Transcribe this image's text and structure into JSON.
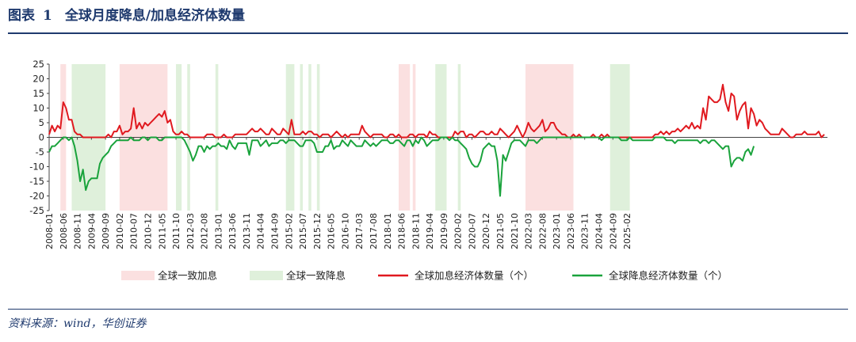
{
  "header": {
    "label": "图表",
    "number": "1",
    "title": "全球月度降息/加息经济体数量"
  },
  "source": "资料来源：wind，华创证券",
  "colors": {
    "hike_band": "#fbe0e0",
    "cut_band": "#dff0db",
    "hike_line": "#e0191f",
    "cut_line": "#1aa33c",
    "navy": "#1f3a6e"
  },
  "chart_data": {
    "type": "line",
    "ylim": [
      -25,
      25
    ],
    "yticks": [
      25,
      20,
      15,
      10,
      5,
      0,
      -5,
      -10,
      -15,
      -20,
      -25
    ],
    "start_month": "2008-01",
    "xtick_labels": [
      "2008-01",
      "2008-06",
      "2008-11",
      "2009-04",
      "2009-09",
      "2010-02",
      "2010-07",
      "2010-12",
      "2011-05",
      "2011-10",
      "2012-03",
      "2012-08",
      "2013-01",
      "2013-06",
      "2013-11",
      "2014-04",
      "2014-09",
      "2015-02",
      "2015-07",
      "2015-12",
      "2016-05",
      "2016-10",
      "2017-03",
      "2017-08",
      "2018-01",
      "2018-06",
      "2018-11",
      "2019-04",
      "2019-09",
      "2020-02",
      "2020-07",
      "2020-12",
      "2021-05",
      "2021-10",
      "2022-03",
      "2022-08",
      "2023-01",
      "2023-06",
      "2023-11",
      "2024-04",
      "2024-09",
      "2025-02"
    ],
    "legend": [
      {
        "label": "全球一致加息",
        "kind": "band",
        "color": "#fbe0e0"
      },
      {
        "label": "全球一致降息",
        "kind": "band",
        "color": "#dff0db"
      },
      {
        "label": "全球加息经济体数量（个）",
        "kind": "line",
        "color": "#e0191f"
      },
      {
        "label": "全球降息经济体数量（个）",
        "kind": "line",
        "color": "#1aa33c"
      }
    ],
    "hike_bands": [
      [
        "2008-05",
        "2008-07"
      ],
      [
        "2010-02",
        "2011-07"
      ],
      [
        "2018-05",
        "2018-09"
      ],
      [
        "2018-10",
        "2018-11"
      ],
      [
        "2022-02",
        "2023-07"
      ]
    ],
    "cut_bands": [
      [
        "2008-09",
        "2009-09"
      ],
      [
        "2011-10",
        "2011-12"
      ],
      [
        "2012-02",
        "2012-03"
      ],
      [
        "2012-12",
        "2013-01"
      ],
      [
        "2015-01",
        "2015-04"
      ],
      [
        "2015-06",
        "2015-07"
      ],
      [
        "2015-09",
        "2015-10"
      ],
      [
        "2015-12",
        "2016-01"
      ],
      [
        "2019-06",
        "2019-10"
      ],
      [
        "2020-02",
        "2020-03"
      ],
      [
        "2024-08",
        "2025-03"
      ]
    ],
    "series": [
      {
        "name": "全球加息经济体数量（个）",
        "values": [
          1,
          4,
          2,
          4,
          3,
          12,
          10,
          6,
          6,
          2,
          1,
          1,
          0,
          0,
          0,
          0,
          0,
          0,
          0,
          0,
          0,
          1,
          0,
          2,
          2,
          4,
          1,
          2,
          2,
          3,
          10,
          3,
          5,
          3,
          5,
          4,
          5,
          6,
          7,
          8,
          7,
          9,
          5,
          6,
          2,
          1,
          1,
          2,
          1,
          1,
          0,
          0,
          0,
          0,
          0,
          0,
          1,
          1,
          1,
          0,
          0,
          0,
          1,
          0,
          0,
          0,
          1,
          1,
          1,
          1,
          1,
          2,
          3,
          2,
          2,
          3,
          2,
          1,
          1,
          3,
          2,
          1,
          1,
          3,
          2,
          1,
          6,
          1,
          1,
          1,
          2,
          1,
          2,
          2,
          1,
          1,
          0,
          1,
          1,
          1,
          0,
          1,
          2,
          1,
          0,
          1,
          0,
          1,
          1,
          1,
          1,
          4,
          2,
          1,
          0,
          1,
          1,
          1,
          1,
          0,
          0,
          1,
          1,
          0,
          1,
          0,
          0,
          0,
          1,
          1,
          0,
          1,
          1,
          1,
          0,
          2,
          1,
          1,
          0,
          0,
          0,
          0,
          0,
          0,
          2,
          1,
          2,
          2,
          0,
          1,
          1,
          0,
          1,
          2,
          2,
          1,
          1,
          2,
          1,
          1,
          3,
          2,
          1,
          0,
          1,
          2,
          4,
          2,
          0,
          2,
          5,
          3,
          2,
          3,
          4,
          6,
          2,
          3,
          5,
          5,
          3,
          2,
          1,
          1,
          0,
          0,
          1,
          0,
          1,
          0,
          0,
          0,
          0,
          1,
          0,
          0,
          1,
          0,
          1,
          0,
          0,
          0,
          0,
          0,
          0,
          0,
          0,
          0,
          0,
          0,
          0,
          0,
          0,
          0,
          0,
          1,
          1,
          2,
          1,
          2,
          1,
          2,
          2,
          3,
          2,
          3,
          4,
          3,
          5,
          3,
          4,
          3,
          10,
          6,
          14,
          13,
          12,
          12,
          13,
          18,
          12,
          9,
          15,
          14,
          6,
          9,
          11,
          12,
          3,
          10,
          8,
          4,
          6,
          5,
          3,
          2,
          1,
          1,
          1,
          1,
          3,
          2,
          1,
          0,
          0,
          1,
          1,
          1,
          2,
          1,
          1,
          1,
          1,
          2,
          0,
          1
        ]
      },
      {
        "name": "全球降息经济体数量（个）",
        "values": [
          -5,
          -3,
          -3,
          -2,
          -1,
          0,
          0,
          -1,
          0,
          -3,
          -8,
          -15,
          -11,
          -18,
          -15,
          -14,
          -14,
          -14,
          -9,
          -7,
          -6,
          -5,
          -3,
          -2,
          -1,
          -1,
          -1,
          -1,
          -1,
          0,
          -1,
          -1,
          -1,
          0,
          0,
          -1,
          0,
          0,
          0,
          -1,
          -1,
          0,
          0,
          0,
          0,
          0,
          0,
          0,
          -1,
          -3,
          -5,
          -8,
          -6,
          -3,
          -3,
          -5,
          -3,
          -4,
          -3,
          -3,
          -2,
          -3,
          -3,
          -4,
          -1,
          -3,
          -4,
          -2,
          -2,
          -2,
          -2,
          -6,
          -1,
          -1,
          -1,
          -3,
          -2,
          -1,
          -3,
          -2,
          -2,
          -2,
          -1,
          -1,
          -2,
          -1,
          -1,
          -1,
          -2,
          -3,
          -3,
          -1,
          -1,
          -1,
          -2,
          -5,
          -5,
          -5,
          -3,
          -3,
          -1,
          -4,
          -3,
          -3,
          -1,
          -2,
          -3,
          -1,
          -2,
          -3,
          -3,
          -3,
          -1,
          -2,
          -3,
          -2,
          -3,
          -2,
          -1,
          -1,
          -1,
          -2,
          -2,
          -1,
          -1,
          -2,
          -3,
          -1,
          -1,
          -3,
          -1,
          -2,
          0,
          -1,
          -3,
          -2,
          -1,
          -1,
          -1,
          0,
          0,
          0,
          -1,
          0,
          -1,
          -1,
          -2,
          -3,
          -4,
          -7,
          -9,
          -10,
          -10,
          -8,
          -4,
          -3,
          -2,
          -3,
          -3,
          -8,
          -20,
          -6,
          -8,
          -5,
          -2,
          -1,
          -1,
          -1,
          -2,
          -3,
          -1,
          -1,
          -1,
          -2,
          -1,
          0,
          0,
          0,
          0,
          0,
          0,
          0,
          0,
          0,
          0,
          0,
          0,
          0,
          0,
          0,
          0,
          0,
          0,
          0,
          0,
          0,
          -1,
          0,
          0,
          0,
          0,
          0,
          0,
          -1,
          -1,
          -1,
          0,
          -1,
          -1,
          -1,
          -1,
          -1,
          -1,
          -1,
          -1,
          0,
          0,
          0,
          0,
          -1,
          -1,
          -1,
          -2,
          -1,
          -1,
          -1,
          -1,
          -1,
          -1,
          -1,
          -1,
          -2,
          -1,
          -1,
          -2,
          -1,
          -1,
          -2,
          -3,
          -4,
          -3,
          -3,
          -10,
          -8,
          -7,
          -7,
          -8,
          -5,
          -4,
          -6,
          -3
        ]
      }
    ]
  }
}
